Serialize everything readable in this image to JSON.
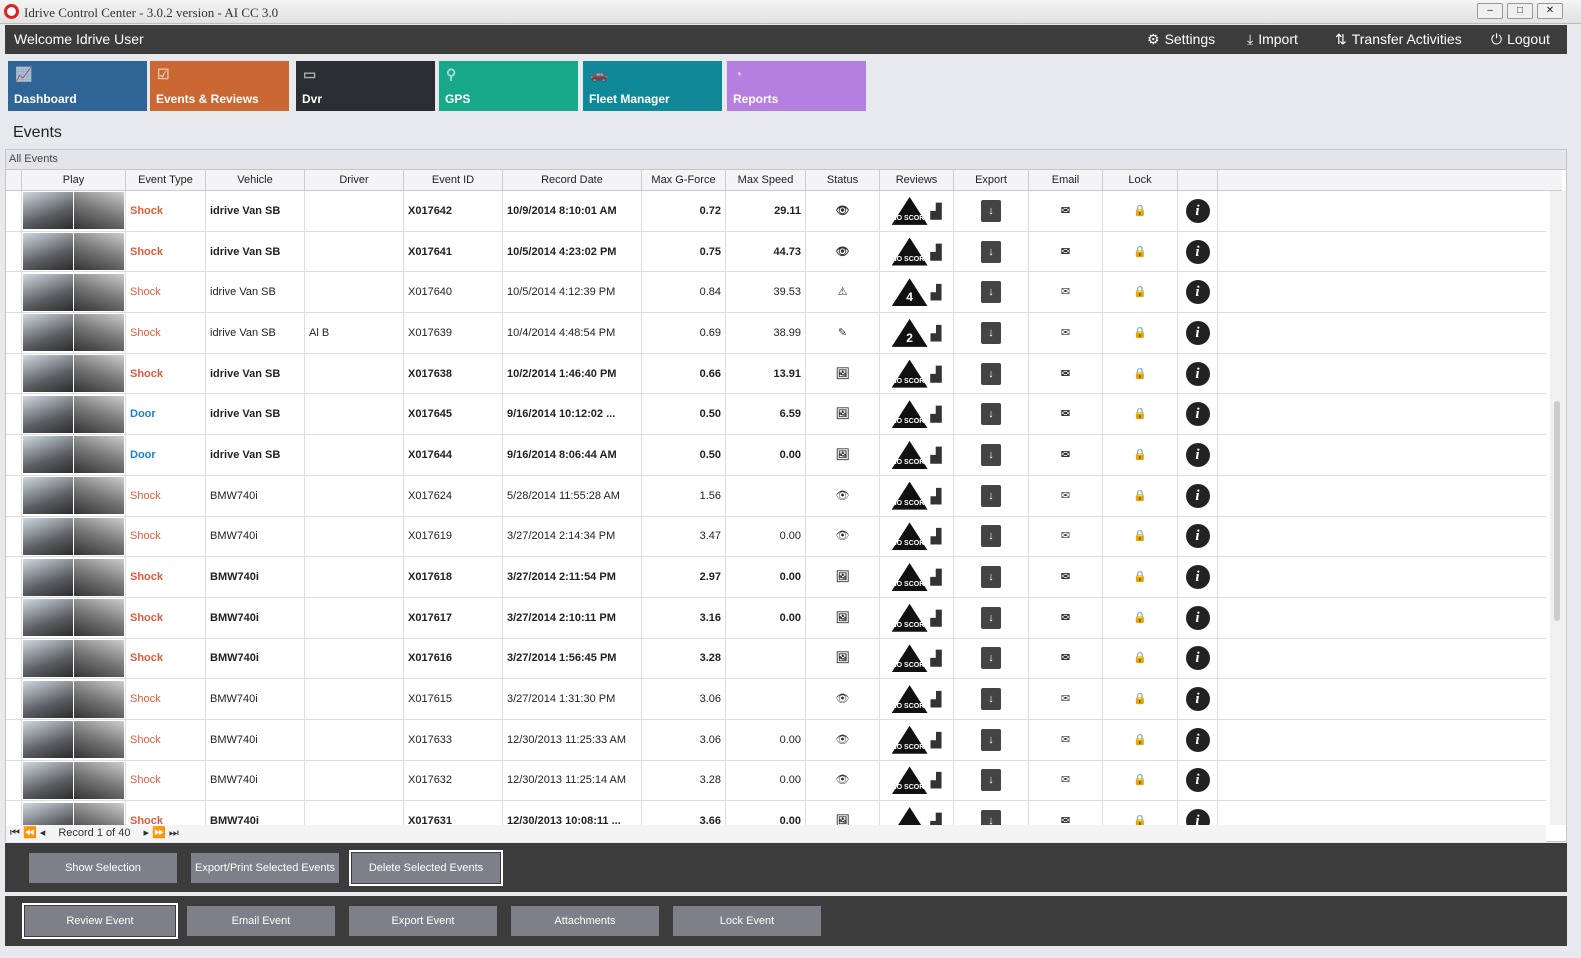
{
  "window": {
    "title": "Idrive Control Center - 3.0.2 version - AI CC 3.0"
  },
  "topbar": {
    "welcome": "Welcome Idrive User",
    "actions": [
      {
        "label": "Settings",
        "icon": "gear-icon"
      },
      {
        "label": "Import",
        "icon": "download-icon"
      },
      {
        "label": "Transfer Activities",
        "icon": "transfer-icon"
      },
      {
        "label": "Logout",
        "icon": "power-icon"
      }
    ]
  },
  "tiles": [
    {
      "label": "Dashboard",
      "color": "#2f6496"
    },
    {
      "label": "Events & Reviews",
      "color": "#cb6732"
    },
    {
      "label": "Dvr",
      "color": "#2b2d30"
    },
    {
      "label": "GPS",
      "color": "#17a88a"
    },
    {
      "label": "Fleet Manager",
      "color": "#0f8897"
    },
    {
      "label": "Reports",
      "color": "#b57fe0"
    }
  ],
  "page_title": "Events",
  "panel_title": "All Events",
  "columns": [
    "Play",
    "Event Type",
    "Vehicle",
    "Driver",
    "Event ID",
    "Record Date",
    "Max G-Force",
    "Max Speed",
    "Status",
    "Reviews",
    "Export",
    "Email",
    "Lock",
    ""
  ],
  "rows": [
    {
      "bold": true,
      "type": "Shock",
      "vehicle": "idrive Van SB",
      "driver": "",
      "id": "X017642",
      "date": "10/9/2014 8:10:01 AM",
      "g": "0.72",
      "speed": "29.11",
      "status": "eye",
      "review": "NO SCORE"
    },
    {
      "bold": true,
      "type": "Shock",
      "vehicle": "idrive Van SB",
      "driver": "",
      "id": "X017641",
      "date": "10/5/2014 4:23:02 PM",
      "g": "0.75",
      "speed": "44.73",
      "status": "eye",
      "review": "NO SCORE"
    },
    {
      "bold": false,
      "type": "Shock",
      "vehicle": "idrive Van SB",
      "driver": "",
      "id": "X017640",
      "date": "10/5/2014 4:12:39 PM",
      "g": "0.84",
      "speed": "39.53",
      "status": "warning",
      "review": "4"
    },
    {
      "bold": false,
      "type": "Shock",
      "vehicle": "idrive Van SB",
      "driver": "Al B",
      "id": "X017639",
      "date": "10/4/2014 4:48:54 PM",
      "g": "0.69",
      "speed": "38.99",
      "status": "pencil",
      "review": "2"
    },
    {
      "bold": true,
      "type": "Shock",
      "vehicle": "idrive Van SB",
      "driver": "",
      "id": "X017638",
      "date": "10/2/2014 1:46:40 PM",
      "g": "0.66",
      "speed": "13.91",
      "status": "image",
      "review": "NO SCORE"
    },
    {
      "bold": true,
      "type": "Door",
      "vehicle": "idrive Van SB",
      "driver": "",
      "id": "X017645",
      "date": "9/16/2014 10:12:02 ...",
      "g": "0.50",
      "speed": "6.59",
      "status": "image",
      "review": "NO SCORE"
    },
    {
      "bold": true,
      "type": "Door",
      "vehicle": "idrive Van SB",
      "driver": "",
      "id": "X017644",
      "date": "9/16/2014 8:06:44 AM",
      "g": "0.50",
      "speed": "0.00",
      "status": "image",
      "review": "NO SCORE"
    },
    {
      "bold": false,
      "type": "Shock",
      "vehicle": "BMW740i",
      "driver": "",
      "id": "X017624",
      "date": "5/28/2014 11:55:28 AM",
      "g": "1.56",
      "speed": "",
      "status": "eye",
      "review": "NO SCORE"
    },
    {
      "bold": false,
      "type": "Shock",
      "vehicle": "BMW740i",
      "driver": "",
      "id": "X017619",
      "date": "3/27/2014 2:14:34 PM",
      "g": "3.47",
      "speed": "0.00",
      "status": "eye",
      "review": "NO SCORE"
    },
    {
      "bold": true,
      "type": "Shock",
      "vehicle": "BMW740i",
      "driver": "",
      "id": "X017618",
      "date": "3/27/2014 2:11:54 PM",
      "g": "2.97",
      "speed": "0.00",
      "status": "image",
      "review": "NO SCORE"
    },
    {
      "bold": true,
      "type": "Shock",
      "vehicle": "BMW740i",
      "driver": "",
      "id": "X017617",
      "date": "3/27/2014 2:10:11 PM",
      "g": "3.16",
      "speed": "0.00",
      "status": "image",
      "review": "NO SCORE"
    },
    {
      "bold": true,
      "type": "Shock",
      "vehicle": "BMW740i",
      "driver": "",
      "id": "X017616",
      "date": "3/27/2014 1:56:45 PM",
      "g": "3.28",
      "speed": "",
      "status": "image",
      "review": "NO SCORE"
    },
    {
      "bold": false,
      "type": "Shock",
      "vehicle": "BMW740i",
      "driver": "",
      "id": "X017615",
      "date": "3/27/2014 1:31:30 PM",
      "g": "3.06",
      "speed": "",
      "status": "eye",
      "review": "NO SCORE"
    },
    {
      "bold": false,
      "type": "Shock",
      "vehicle": "BMW740i",
      "driver": "",
      "id": "X017633",
      "date": "12/30/2013 11:25:33 AM",
      "g": "3.06",
      "speed": "0.00",
      "status": "eye",
      "review": "NO SCORE"
    },
    {
      "bold": false,
      "type": "Shock",
      "vehicle": "BMW740i",
      "driver": "",
      "id": "X017632",
      "date": "12/30/2013 11:25:14 AM",
      "g": "3.28",
      "speed": "0.00",
      "status": "eye",
      "review": "NO SCORE"
    },
    {
      "bold": true,
      "type": "Shock",
      "vehicle": "BMW740i",
      "driver": "",
      "id": "X017631",
      "date": "12/30/2013 10:08:11 ...",
      "g": "3.66",
      "speed": "0.00",
      "status": "image",
      "review": "NO SCORE"
    }
  ],
  "navigator": {
    "record_text": "Record 1 of 40"
  },
  "selection_buttons": [
    "Show Selection",
    "Export/Print Selected Events",
    "Delete Selected  Events"
  ],
  "event_buttons": [
    "Review Event",
    "Email Event",
    "Export Event",
    "Attachments",
    "Lock Event"
  ]
}
